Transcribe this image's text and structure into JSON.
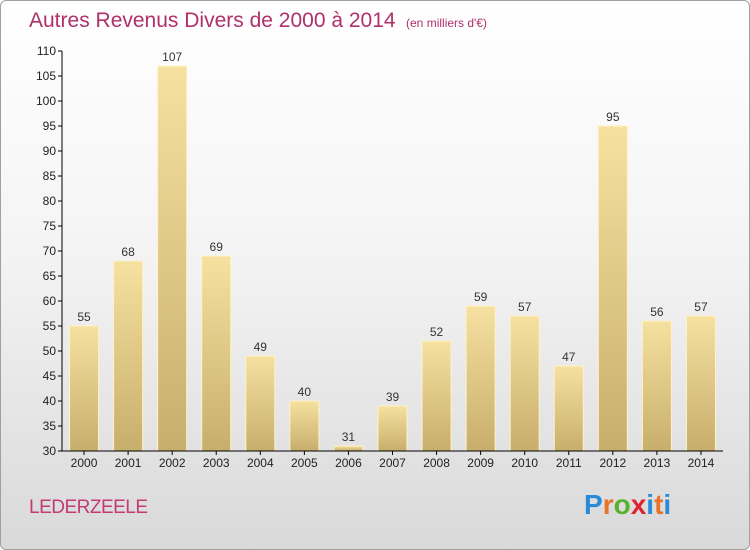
{
  "title": "Autres Revenus Divers de 2000 à 2014",
  "unit_note": "(en milliers d'€)",
  "commune": "LEDERZEELE",
  "logo_text": "Proxiti",
  "colors": {
    "title": "#b0306a",
    "commune": "#c23b72",
    "bar_light": "#f6e1a0",
    "bar_dark": "#c8ae6c",
    "axis": "#000000"
  },
  "chart_data": {
    "type": "bar",
    "title": "Autres Revenus Divers de 2000 à 2014",
    "categories": [
      "2000",
      "2001",
      "2002",
      "2003",
      "2004",
      "2005",
      "2006",
      "2007",
      "2008",
      "2009",
      "2010",
      "2011",
      "2012",
      "2013",
      "2014"
    ],
    "values": [
      55,
      68,
      107,
      69,
      49,
      40,
      31,
      39,
      52,
      59,
      57,
      47,
      95,
      56,
      57
    ],
    "ylim": [
      30,
      110
    ],
    "yticks": [
      30,
      35,
      40,
      45,
      50,
      55,
      60,
      65,
      70,
      75,
      80,
      85,
      90,
      95,
      100,
      105,
      110
    ],
    "xlabel": "",
    "ylabel": "",
    "grid": false,
    "data_labels": true
  }
}
